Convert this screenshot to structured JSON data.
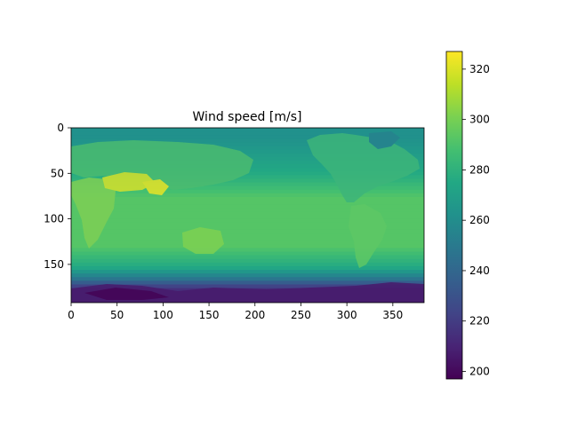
{
  "chart_data": {
    "type": "heatmap",
    "title": "Wind speed [m/s]",
    "xlabel": "",
    "ylabel": "",
    "xlim": [
      0,
      384
    ],
    "ylim": [
      192,
      0
    ],
    "x_ticks": [
      0,
      50,
      100,
      150,
      200,
      250,
      300,
      350
    ],
    "y_ticks": [
      0,
      50,
      100,
      150
    ],
    "colormap": "viridis",
    "colorbar": {
      "min": 197,
      "max": 327,
      "ticks": [
        200,
        220,
        240,
        260,
        280,
        300,
        320
      ]
    },
    "grid": false,
    "field_summary": {
      "tropics_band_value": 292,
      "mid_latitude_value": 275,
      "polar_south_value": 215,
      "arctic_value": 262,
      "desert_hot_spot_value": 318
    }
  }
}
